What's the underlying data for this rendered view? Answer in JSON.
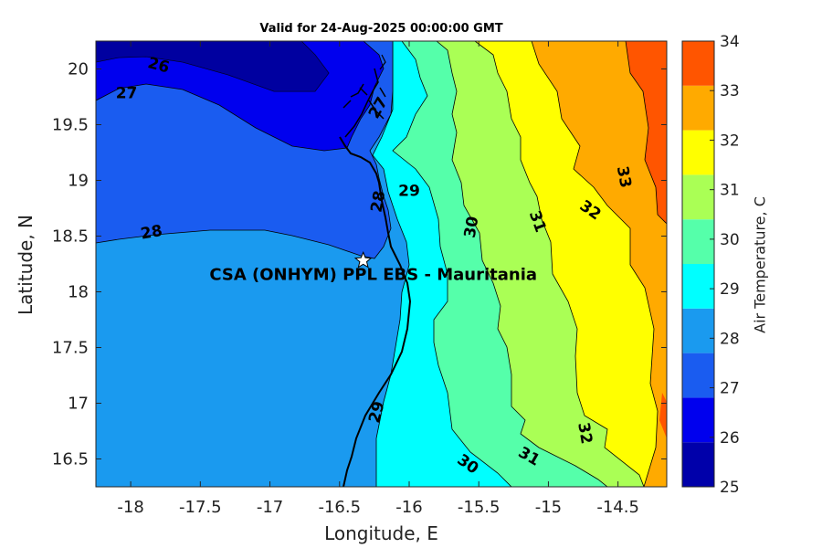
{
  "chart_data": {
    "type": "contour",
    "title": "Valid for 24-Aug-2025 00:00:00 GMT",
    "xlabel": "Longitude, E",
    "ylabel": "Latitude, N",
    "xlim": [
      -18.25,
      -14.15
    ],
    "ylim": [
      16.25,
      20.25
    ],
    "x_ticks": [
      -18,
      -17.5,
      -17,
      -16.5,
      -16,
      -15.5,
      -15,
      -14.5
    ],
    "x_tick_labels": [
      "-18",
      "-17.5",
      "-17",
      "-16.5",
      "-16",
      "-15.5",
      "-15",
      "-14.5"
    ],
    "y_ticks": [
      16.5,
      17,
      17.5,
      18,
      18.5,
      19,
      19.5,
      20
    ],
    "y_tick_labels": [
      "16.5",
      "17",
      "17.5",
      "18",
      "18.5",
      "19",
      "19.5",
      "20"
    ],
    "colorbar": {
      "label": "Air Temperature, C",
      "ticks": [
        25,
        26,
        27,
        28,
        29,
        30,
        31,
        32,
        33,
        34
      ],
      "tick_labels": [
        "25",
        "26",
        "27",
        "28",
        "29",
        "30",
        "31",
        "32",
        "33",
        "34"
      ],
      "colors": [
        "#0000aa",
        "#0000ee",
        "#1a5cf0",
        "#1a9aef",
        "#00ffff",
        "#55ffaa",
        "#aaff55",
        "#ffff00",
        "#ffaa00",
        "#ff5500"
      ]
    },
    "contour_labels": [
      {
        "text": "26",
        "lon": -17.8,
        "lat": 20.03
      },
      {
        "text": "27",
        "lon": -18.03,
        "lat": 19.78
      },
      {
        "text": "28",
        "lon": -17.85,
        "lat": 18.53
      },
      {
        "text": "28",
        "lon": -16.22,
        "lat": 18.81
      },
      {
        "text": "29",
        "lon": -16.0,
        "lat": 18.9
      },
      {
        "text": "29",
        "lon": -16.23,
        "lat": 16.92
      },
      {
        "text": "30",
        "lon": -15.55,
        "lat": 18.58
      },
      {
        "text": "30",
        "lon": -15.58,
        "lat": 16.45
      },
      {
        "text": "31",
        "lon": -15.08,
        "lat": 18.63
      },
      {
        "text": "31",
        "lon": -15.14,
        "lat": 16.52
      },
      {
        "text": "32",
        "lon": -14.7,
        "lat": 18.73
      },
      {
        "text": "32",
        "lon": -14.74,
        "lat": 16.73
      },
      {
        "text": "33",
        "lon": -14.46,
        "lat": 19.03
      },
      {
        "text": "27",
        "lon": -16.22,
        "lat": 19.65
      }
    ],
    "site": {
      "label": "CSA (ONHYM) PPL EBS  - Mauritania",
      "lon": -16.33,
      "lat": 18.28
    }
  }
}
